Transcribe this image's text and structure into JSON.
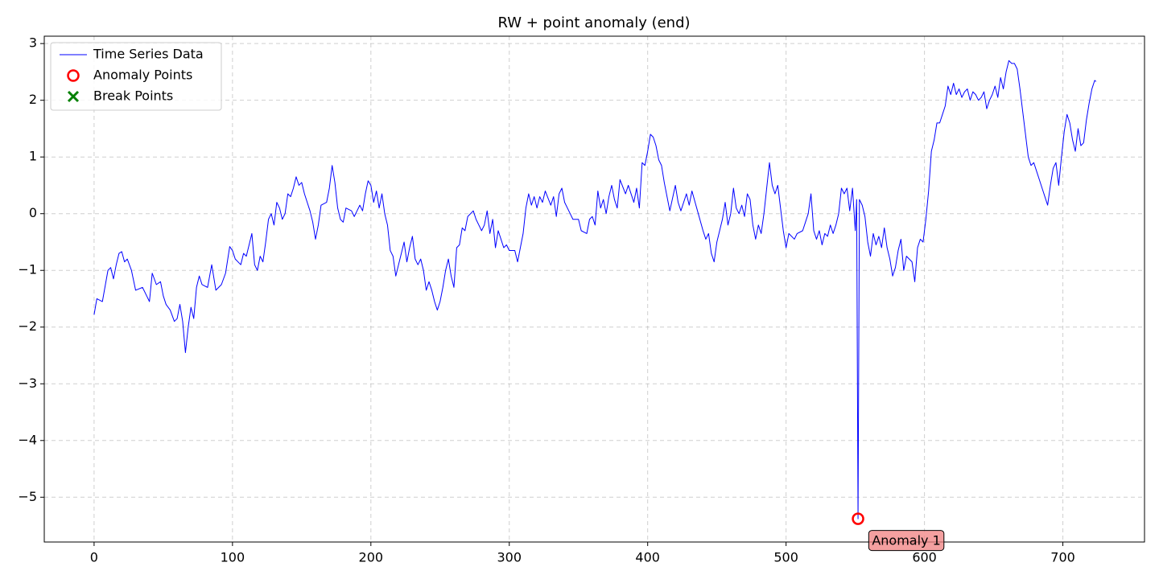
{
  "chart_data": {
    "type": "line",
    "title": "RW + point anomaly (end)",
    "xlim": [
      -36,
      759
    ],
    "ylim": [
      -5.79,
      3.13
    ],
    "xticks": [
      0,
      100,
      200,
      300,
      400,
      500,
      600,
      700
    ],
    "yticks": [
      {
        "value": -5,
        "label": "−5"
      },
      {
        "value": -4,
        "label": "−4"
      },
      {
        "value": -3,
        "label": "−3"
      },
      {
        "value": -2,
        "label": "−2"
      },
      {
        "value": -1,
        "label": "−1"
      },
      0,
      1,
      2,
      3
    ],
    "grid": true,
    "legend": "upper left",
    "series": [
      {
        "name": "Time Series Data",
        "type": "line",
        "color": "#0000ff",
        "x": [
          0,
          2,
          6,
          10,
          12,
          14,
          16,
          18,
          20,
          22,
          24,
          27,
          30,
          35,
          38,
          40,
          42,
          45,
          48,
          50,
          52,
          55,
          58,
          60,
          62,
          64,
          66,
          68,
          70,
          72,
          74,
          76,
          78,
          82,
          85,
          88,
          92,
          95,
          98,
          100,
          102,
          106,
          108,
          110,
          112,
          114,
          116,
          118,
          120,
          122,
          124,
          126,
          128,
          130,
          132,
          134,
          136,
          138,
          140,
          142,
          144,
          146,
          148,
          150,
          152,
          156,
          158,
          160,
          162,
          164,
          168,
          170,
          172,
          174,
          176,
          178,
          180,
          182,
          186,
          188,
          190,
          192,
          194,
          196,
          198,
          200,
          202,
          204,
          206,
          208,
          210,
          212,
          214,
          216,
          218,
          220,
          222,
          224,
          226,
          228,
          230,
          232,
          234,
          236,
          238,
          240,
          242,
          244,
          246,
          248,
          250,
          252,
          254,
          256,
          258,
          260,
          262,
          264,
          266,
          268,
          270,
          274,
          276,
          278,
          280,
          282,
          284,
          286,
          288,
          290,
          292,
          294,
          296,
          298,
          300,
          304,
          306,
          308,
          310,
          312,
          314,
          316,
          318,
          320,
          322,
          324,
          326,
          330,
          332,
          334,
          336,
          338,
          340,
          344,
          346,
          350,
          352,
          356,
          358,
          360,
          362,
          364,
          366,
          368,
          370,
          372,
          374,
          376,
          378,
          380,
          384,
          386,
          390,
          392,
          394,
          396,
          398,
          400,
          402,
          404,
          406,
          408,
          410,
          412,
          414,
          416,
          420,
          422,
          424,
          428,
          430,
          432,
          436,
          440,
          442,
          444,
          446,
          448,
          450,
          452,
          454,
          456,
          458,
          460,
          462,
          464,
          466,
          468,
          470,
          472,
          474,
          476,
          478,
          480,
          482,
          484,
          486,
          488,
          490,
          492,
          494,
          496,
          498,
          500,
          502,
          506,
          508,
          512,
          514,
          516,
          518,
          520,
          522,
          524,
          526,
          528,
          530,
          532,
          534,
          536,
          538,
          540,
          542,
          544,
          546,
          548,
          550,
          551,
          552,
          553,
          555,
          557,
          559,
          561,
          563,
          565,
          567,
          569,
          571,
          573,
          575,
          577,
          579,
          581,
          583,
          585,
          587,
          589,
          591,
          593,
          595,
          597,
          599,
          601,
          603,
          605,
          607,
          609,
          611,
          613,
          615,
          617,
          619,
          621,
          623,
          625,
          627,
          629,
          631,
          633,
          635,
          637,
          639,
          641,
          643,
          645,
          647,
          649,
          651,
          653,
          655,
          657,
          659,
          661,
          663,
          665,
          667,
          669,
          671,
          673,
          675,
          677,
          679,
          681,
          683,
          685,
          687,
          689,
          691,
          693,
          695,
          697,
          699,
          701,
          703,
          705,
          707,
          709,
          711,
          713,
          715,
          717,
          719,
          721,
          723,
          724
        ],
        "values": [
          -1.78,
          -1.5,
          -1.55,
          -1.0,
          -0.95,
          -1.15,
          -0.9,
          -0.7,
          -0.67,
          -0.85,
          -0.8,
          -1.0,
          -1.35,
          -1.3,
          -1.45,
          -1.55,
          -1.05,
          -1.25,
          -1.2,
          -1.45,
          -1.6,
          -1.7,
          -1.9,
          -1.85,
          -1.6,
          -1.9,
          -2.45,
          -2.0,
          -1.65,
          -1.85,
          -1.3,
          -1.1,
          -1.25,
          -1.3,
          -0.9,
          -1.35,
          -1.25,
          -1.05,
          -0.58,
          -0.65,
          -0.8,
          -0.9,
          -0.7,
          -0.75,
          -0.55,
          -0.35,
          -0.9,
          -1.0,
          -0.75,
          -0.85,
          -0.5,
          -0.1,
          0.0,
          -0.2,
          0.2,
          0.1,
          -0.1,
          0.0,
          0.35,
          0.3,
          0.45,
          0.65,
          0.5,
          0.55,
          0.35,
          0.05,
          -0.15,
          -0.45,
          -0.2,
          0.15,
          0.2,
          0.45,
          0.85,
          0.55,
          0.1,
          -0.1,
          -0.15,
          0.1,
          0.05,
          -0.05,
          0.05,
          0.15,
          0.05,
          0.35,
          0.58,
          0.5,
          0.2,
          0.4,
          0.1,
          0.35,
          0.0,
          -0.2,
          -0.65,
          -0.75,
          -1.1,
          -0.9,
          -0.7,
          -0.5,
          -0.85,
          -0.6,
          -0.4,
          -0.8,
          -0.9,
          -0.8,
          -1.0,
          -1.35,
          -1.2,
          -1.35,
          -1.55,
          -1.7,
          -1.55,
          -1.3,
          -1.0,
          -0.8,
          -1.1,
          -1.3,
          -0.6,
          -0.55,
          -0.25,
          -0.3,
          -0.05,
          0.05,
          -0.1,
          -0.2,
          -0.3,
          -0.2,
          0.05,
          -0.35,
          -0.1,
          -0.6,
          -0.3,
          -0.45,
          -0.6,
          -0.55,
          -0.65,
          -0.65,
          -0.85,
          -0.6,
          -0.35,
          0.1,
          0.35,
          0.15,
          0.3,
          0.1,
          0.3,
          0.2,
          0.4,
          0.15,
          0.3,
          -0.05,
          0.35,
          0.45,
          0.2,
          0.0,
          -0.1,
          -0.1,
          -0.3,
          -0.35,
          -0.1,
          -0.05,
          -0.2,
          0.4,
          0.1,
          0.25,
          0.0,
          0.3,
          0.5,
          0.25,
          0.1,
          0.6,
          0.35,
          0.5,
          0.2,
          0.45,
          0.1,
          0.9,
          0.85,
          1.1,
          1.4,
          1.35,
          1.2,
          0.95,
          0.85,
          0.55,
          0.3,
          0.05,
          0.5,
          0.2,
          0.05,
          0.35,
          0.15,
          0.4,
          0.05,
          -0.3,
          -0.45,
          -0.35,
          -0.7,
          -0.85,
          -0.5,
          -0.3,
          -0.1,
          0.2,
          -0.2,
          0.0,
          0.45,
          0.1,
          0.0,
          0.15,
          -0.05,
          0.35,
          0.25,
          -0.2,
          -0.45,
          -0.2,
          -0.35,
          0.0,
          0.45,
          0.9,
          0.5,
          0.35,
          0.5,
          0.1,
          -0.3,
          -0.6,
          -0.35,
          -0.45,
          -0.35,
          -0.3,
          -0.15,
          0.0,
          0.35,
          -0.3,
          -0.45,
          -0.3,
          -0.55,
          -0.35,
          -0.4,
          -0.2,
          -0.35,
          -0.2,
          0.0,
          0.45,
          0.35,
          0.45,
          0.05,
          0.45,
          -0.3,
          0.25,
          -5.38,
          0.25,
          0.15,
          -0.05,
          -0.5,
          -0.75,
          -0.35,
          -0.55,
          -0.4,
          -0.6,
          -0.25,
          -0.6,
          -0.8,
          -1.1,
          -0.95,
          -0.65,
          -0.45,
          -1.0,
          -0.75,
          -0.8,
          -0.85,
          -1.2,
          -0.6,
          -0.45,
          -0.5,
          -0.1,
          0.4,
          1.1,
          1.3,
          1.6,
          1.6,
          1.75,
          1.9,
          2.25,
          2.1,
          2.3,
          2.1,
          2.2,
          2.05,
          2.15,
          2.2,
          2.0,
          2.15,
          2.1,
          2.0,
          2.05,
          2.15,
          1.85,
          2.0,
          2.1,
          2.25,
          2.05,
          2.4,
          2.2,
          2.5,
          2.7,
          2.65,
          2.65,
          2.55,
          2.2,
          1.8,
          1.4,
          1.0,
          0.85,
          0.9,
          0.75,
          0.6,
          0.45,
          0.3,
          0.15,
          0.5,
          0.8,
          0.9,
          0.5,
          1.0,
          1.45,
          1.75,
          1.6,
          1.3,
          1.1,
          1.5,
          1.2,
          1.25,
          1.65,
          1.95,
          2.2,
          2.35,
          2.33
        ]
      },
      {
        "name": "Anomaly Points",
        "type": "scatter",
        "marker": "o",
        "color": "#ff0000",
        "x": [
          552
        ],
        "values": [
          -5.38
        ]
      },
      {
        "name": "Break Points",
        "type": "scatter",
        "marker": "x",
        "color": "#008000",
        "x": [],
        "values": []
      }
    ],
    "annotations": [
      "Anomaly 1"
    ]
  }
}
